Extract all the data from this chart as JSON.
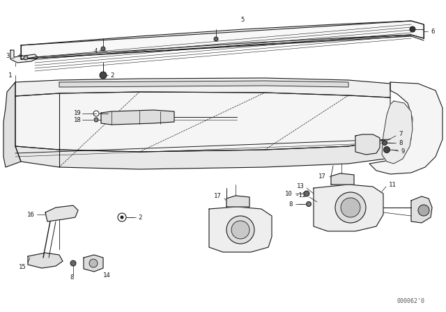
{
  "background_color": "#ffffff",
  "line_color": "#1a1a1a",
  "figsize": [
    6.4,
    4.48
  ],
  "dpi": 100,
  "diagram_code": "000062'0"
}
